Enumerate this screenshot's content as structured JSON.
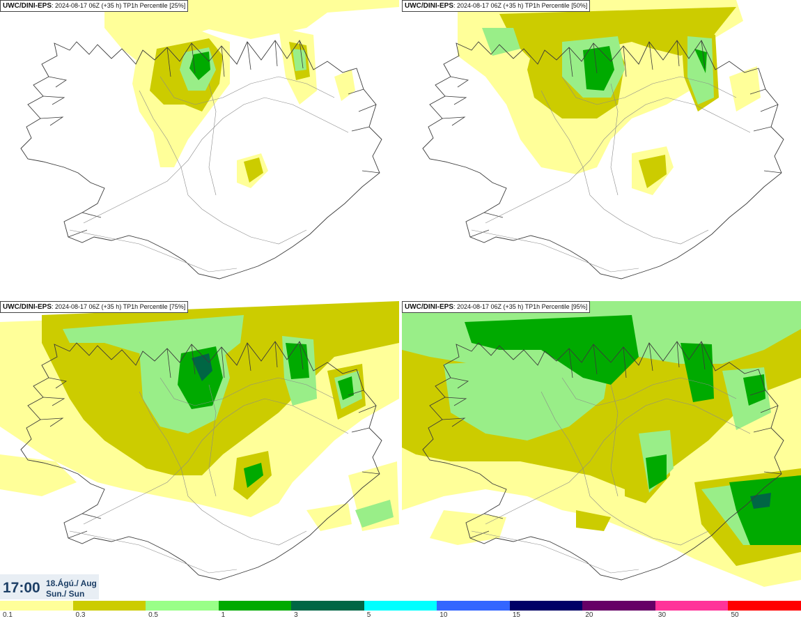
{
  "panels": [
    {
      "model": "UWC/DINI-EPS",
      "info": ": 2024-08-17 06Z (+35 h) ",
      "product": "TP1h Percentile [25%]"
    },
    {
      "model": "UWC/DINI-EPS",
      "info": ": 2024-08-17 06Z (+35 h) ",
      "product": "TP1h Percentile [50%]"
    },
    {
      "model": "UWC/DINI-EPS",
      "info": ": 2024-08-17 06Z (+35 h) ",
      "product": "TP1h Percentile [75%]"
    },
    {
      "model": "UWC/DINI-EPS",
      "info": ": 2024-08-17 06Z (+35 h) ",
      "product": "TP1h Percentile [95%]"
    }
  ],
  "valid_time": {
    "time": "17:00",
    "date_line1": "18.Ágú./ Aug",
    "date_line2": "Sun./ Sun"
  },
  "legend": {
    "colors": [
      "#ffff99",
      "#cccc00",
      "#99ff88",
      "#00aa00",
      "#006644",
      "#00ffff",
      "#3366ff",
      "#000066",
      "#660066",
      "#ff3399",
      "#ff0000"
    ],
    "labels": [
      "0.1",
      "0.3",
      "0.5",
      "1",
      "3",
      "5",
      "10",
      "15",
      "20",
      "30",
      "50"
    ]
  },
  "map_colors": {
    "land_outline": "#3a3a3a",
    "roads": "#8a8a8a",
    "rain_1": "#ffff99",
    "rain_2": "#cccc00",
    "rain_3": "#99ee88",
    "rain_4": "#00aa00",
    "rain_5": "#006644"
  }
}
